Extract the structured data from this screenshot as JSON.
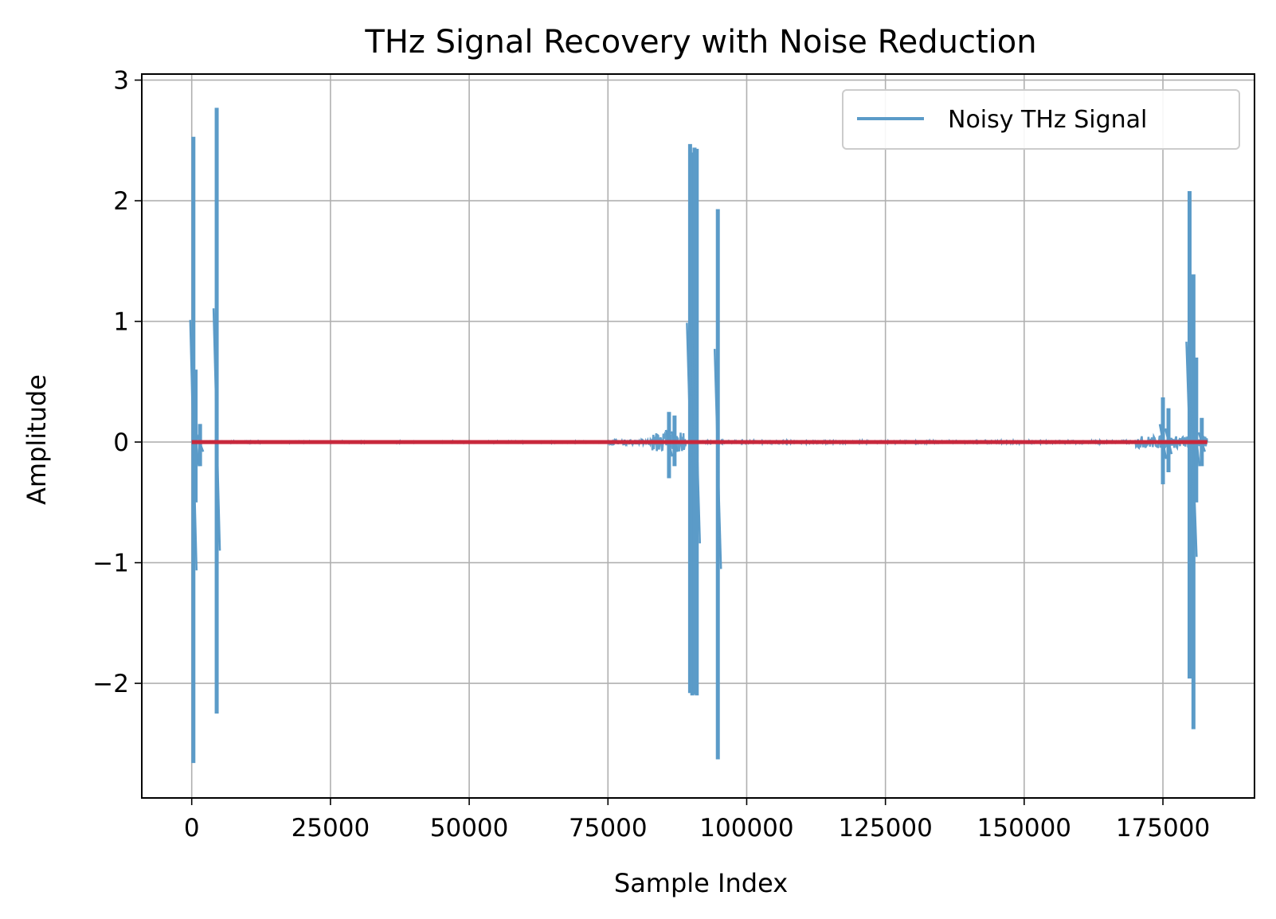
{
  "chart_data": {
    "type": "line",
    "title": "THz Signal Recovery with Noise Reduction",
    "xlabel": "Sample Index",
    "ylabel": "Amplitude",
    "xlim": [
      -9000,
      191500
    ],
    "ylim": [
      -2.95,
      3.05
    ],
    "xticks": [
      0,
      25000,
      50000,
      75000,
      100000,
      125000,
      150000,
      175000
    ],
    "xtick_labels": [
      "0",
      "25000",
      "50000",
      "75000",
      "100000",
      "125000",
      "150000",
      "175000"
    ],
    "yticks": [
      -2,
      -1,
      0,
      1,
      2,
      3
    ],
    "ytick_labels": [
      "−2",
      "−1",
      "0",
      "1",
      "2",
      "3"
    ],
    "grid": true,
    "legend_position": "top-right",
    "series": [
      {
        "name": "Noisy THz Signal",
        "color": "#5b9bc8",
        "style": "line",
        "x_range": [
          0,
          183000
        ],
        "baseline_noise": [
          {
            "x": [
              0,
              75000
            ],
            "amplitude": 0.005
          },
          {
            "x": [
              75000,
              83000
            ],
            "amplitude": 0.02
          },
          {
            "x": [
              83000,
              89000
            ],
            "amplitude": 0.08
          },
          {
            "x": [
              92000,
              170000
            ],
            "amplitude": 0.008
          },
          {
            "x": [
              170000,
              183000
            ],
            "amplitude": 0.05
          }
        ],
        "features": [
          {
            "x": 300,
            "max": 2.53,
            "min": -2.66
          },
          {
            "x": 700,
            "max": 0.6,
            "min": -0.5
          },
          {
            "x": 1500,
            "max": 0.15,
            "min": -0.2
          },
          {
            "x": 4500,
            "max": 2.77,
            "min": -2.25
          },
          {
            "x": 86000,
            "max": 0.25,
            "min": -0.3
          },
          {
            "x": 87000,
            "max": 0.22,
            "min": -0.2
          },
          {
            "x": 89800,
            "max": 2.47,
            "min": -2.08
          },
          {
            "x": 90200,
            "max": 2.4,
            "min": -2.1
          },
          {
            "x": 90600,
            "max": 2.44,
            "min": -2.09
          },
          {
            "x": 91000,
            "max": 2.43,
            "min": -2.1
          },
          {
            "x": 94800,
            "max": 1.93,
            "min": -2.63
          },
          {
            "x": 175000,
            "max": 0.37,
            "min": -0.35
          },
          {
            "x": 176000,
            "max": 0.28,
            "min": -0.25
          },
          {
            "x": 179800,
            "max": 2.08,
            "min": -1.96
          },
          {
            "x": 180500,
            "max": 1.39,
            "min": -2.38
          },
          {
            "x": 181000,
            "max": 0.7,
            "min": -0.5
          },
          {
            "x": 182000,
            "max": 0.2,
            "min": -0.2
          }
        ]
      },
      {
        "name": "",
        "color": "#c8283c",
        "style": "line",
        "x": [
          0,
          183000
        ],
        "y": [
          0,
          0
        ]
      }
    ]
  }
}
